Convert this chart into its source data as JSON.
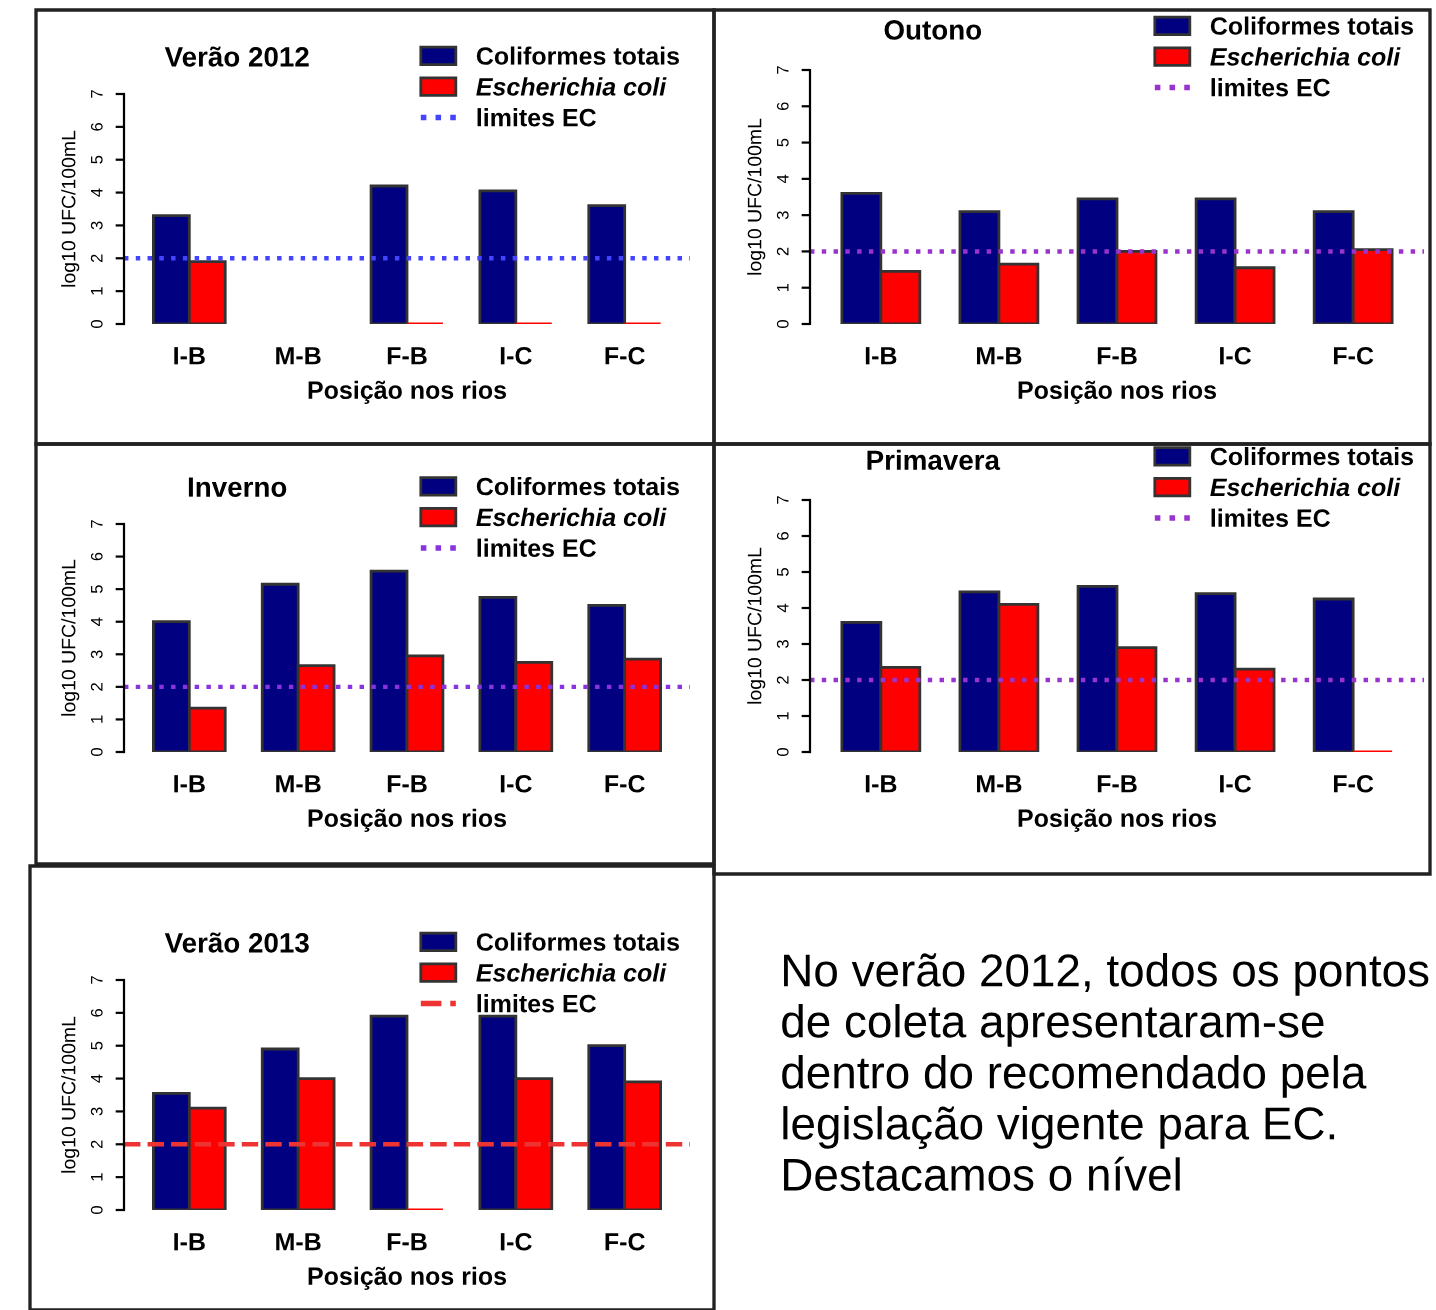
{
  "chart_data": [
    {
      "type": "bar",
      "title": "Verão 2012",
      "xlabel": "Posição nos rios",
      "ylabel": "log10 UFC/100mL",
      "categories": [
        "I-B",
        "M-B",
        "F-B",
        "I-C",
        "F-C"
      ],
      "ylim": [
        0,
        7
      ],
      "yticks": [
        0,
        1,
        2,
        3,
        4,
        5,
        6,
        7
      ],
      "legend": "top right",
      "grid": false,
      "series": [
        {
          "name": "Coliformes totais",
          "color": "#000080",
          "values": [
            3.3,
            null,
            4.2,
            4.05,
            3.6
          ]
        },
        {
          "name": "Escherichia coli",
          "color": "#ff0000",
          "values": [
            1.9,
            null,
            0,
            0,
            0
          ]
        }
      ],
      "ref_lines": [
        {
          "axis": "y",
          "value": 2,
          "label": "limites EC",
          "color": "#4444ff",
          "line_style": "dotted"
        }
      ]
    },
    {
      "type": "bar",
      "title": "Outono",
      "xlabel": "Posição nos rios",
      "ylabel": "log10 UFC/100mL",
      "categories": [
        "I-B",
        "M-B",
        "F-B",
        "I-C",
        "F-C"
      ],
      "ylim": [
        0,
        7
      ],
      "yticks": [
        0,
        1,
        2,
        3,
        4,
        5,
        6,
        7
      ],
      "legend": "top right",
      "grid": false,
      "series": [
        {
          "name": "Coliformes totais",
          "color": "#000080",
          "values": [
            3.6,
            3.1,
            3.45,
            3.45,
            3.1
          ]
        },
        {
          "name": "Escherichia coli",
          "color": "#ff0000",
          "values": [
            1.45,
            1.65,
            2.0,
            1.55,
            2.05
          ]
        }
      ],
      "ref_lines": [
        {
          "axis": "y",
          "value": 2,
          "label": "limites EC",
          "color": "#9933cc",
          "line_style": "dotted"
        }
      ]
    },
    {
      "type": "bar",
      "title": "Inverno",
      "xlabel": "Posição nos rios",
      "ylabel": "log10 UFC/100mL",
      "categories": [
        "I-B",
        "M-B",
        "F-B",
        "I-C",
        "F-C"
      ],
      "ylim": [
        0,
        7
      ],
      "yticks": [
        0,
        1,
        2,
        3,
        4,
        5,
        6,
        7
      ],
      "legend": "top right",
      "grid": false,
      "series": [
        {
          "name": "Coliformes totais",
          "color": "#000080",
          "values": [
            4.0,
            5.15,
            5.55,
            4.75,
            4.5
          ]
        },
        {
          "name": "Escherichia coli",
          "color": "#ff0000",
          "values": [
            1.35,
            2.65,
            2.95,
            2.75,
            2.85
          ]
        }
      ],
      "ref_lines": [
        {
          "axis": "y",
          "value": 2,
          "label": "limites EC",
          "color": "#8833dd",
          "line_style": "dotted"
        }
      ]
    },
    {
      "type": "bar",
      "title": "Primavera",
      "xlabel": "Posição nos rios",
      "ylabel": "log10 UFC/100mL",
      "categories": [
        "I-B",
        "M-B",
        "F-B",
        "I-C",
        "F-C"
      ],
      "ylim": [
        0,
        7
      ],
      "yticks": [
        0,
        1,
        2,
        3,
        4,
        5,
        6,
        7
      ],
      "legend": "top right",
      "grid": false,
      "series": [
        {
          "name": "Coliformes totais",
          "color": "#000080",
          "values": [
            3.6,
            4.45,
            4.6,
            4.4,
            4.25
          ]
        },
        {
          "name": "Escherichia coli",
          "color": "#ff0000",
          "values": [
            2.35,
            4.1,
            2.9,
            2.3,
            0
          ]
        }
      ],
      "ref_lines": [
        {
          "axis": "y",
          "value": 2,
          "label": "limites EC",
          "color": "#9933cc",
          "line_style": "dotted"
        }
      ]
    },
    {
      "type": "bar",
      "title": "Verão 2013",
      "xlabel": "Posição nos rios",
      "ylabel": "log10 UFC/100mL",
      "categories": [
        "I-B",
        "M-B",
        "F-B",
        "I-C",
        "F-C"
      ],
      "ylim": [
        0,
        7
      ],
      "yticks": [
        0,
        1,
        2,
        3,
        4,
        5,
        6,
        7
      ],
      "legend": "top right",
      "grid": false,
      "series": [
        {
          "name": "Coliformes totais",
          "color": "#000080",
          "values": [
            3.55,
            4.9,
            5.9,
            5.9,
            5.0
          ]
        },
        {
          "name": "Escherichia coli",
          "color": "#ff0000",
          "values": [
            3.1,
            4.0,
            0,
            4.0,
            3.9
          ]
        }
      ],
      "ref_lines": [
        {
          "axis": "y",
          "value": 2,
          "label": "limites EC",
          "color": "#ee3333",
          "line_style": "dashed"
        }
      ]
    },
    {
      "type": "other",
      "annotations": [
        "No verão 2012, todos os pontos de coleta apresentaram-se dentro do recomendado pela legislação vigente para EC. Destacamos o nível"
      ]
    }
  ]
}
